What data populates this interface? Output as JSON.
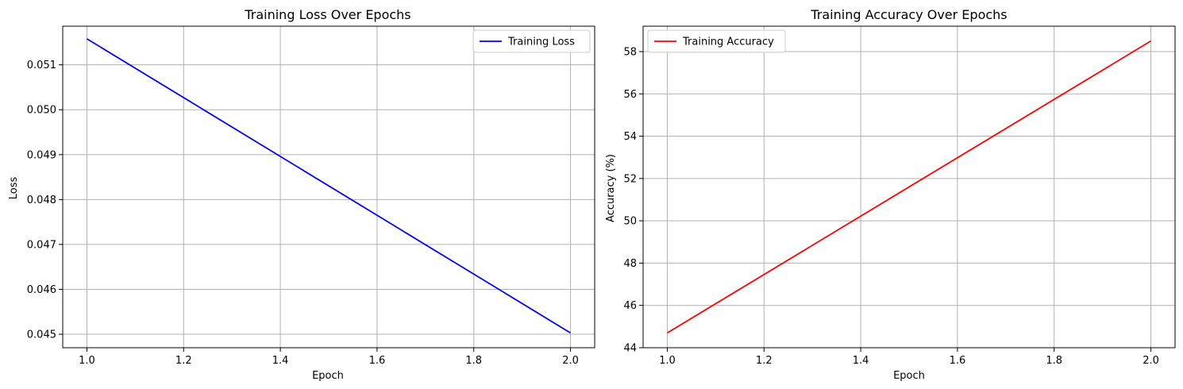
{
  "chart_data": [
    {
      "type": "line",
      "title": "Training Loss Over Epochs",
      "xlabel": "Epoch",
      "ylabel": "Loss",
      "xlim": [
        0.95,
        2.05
      ],
      "ylim": [
        0.0447,
        0.05186
      ],
      "xticks": [
        1.0,
        1.2,
        1.4,
        1.6,
        1.8,
        2.0
      ],
      "xtick_labels": [
        "1.0",
        "1.2",
        "1.4",
        "1.6",
        "1.8",
        "2.0"
      ],
      "yticks": [
        0.045,
        0.046,
        0.047,
        0.048,
        0.049,
        0.05,
        0.051
      ],
      "ytick_labels": [
        "0.045",
        "0.046",
        "0.047",
        "0.048",
        "0.049",
        "0.050",
        "0.051"
      ],
      "grid": true,
      "legend_position": "upper right",
      "series": [
        {
          "name": "Training Loss",
          "color": "#0000ff",
          "x": [
            1,
            2
          ],
          "y": [
            0.05158,
            0.04503
          ]
        }
      ]
    },
    {
      "type": "line",
      "title": "Training Accuracy Over Epochs",
      "xlabel": "Epoch",
      "ylabel": "Accuracy (%)",
      "xlim": [
        0.95,
        2.05
      ],
      "ylim": [
        44.0,
        59.2
      ],
      "xticks": [
        1.0,
        1.2,
        1.4,
        1.6,
        1.8,
        2.0
      ],
      "xtick_labels": [
        "1.0",
        "1.2",
        "1.4",
        "1.6",
        "1.8",
        "2.0"
      ],
      "yticks": [
        44,
        46,
        48,
        50,
        52,
        54,
        56,
        58
      ],
      "ytick_labels": [
        "44",
        "46",
        "48",
        "50",
        "52",
        "54",
        "56",
        "58"
      ],
      "grid": true,
      "legend_position": "upper left",
      "series": [
        {
          "name": "Training Accuracy",
          "color": "#ff0000",
          "x": [
            1,
            2
          ],
          "y": [
            44.7,
            58.5
          ]
        }
      ]
    }
  ]
}
